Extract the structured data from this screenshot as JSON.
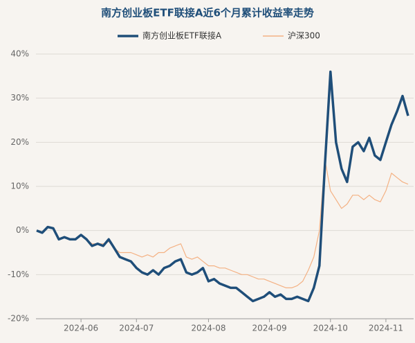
{
  "chart_data": {
    "type": "line",
    "title": "南方创业板ETF联接A近6个月累计收益率走势",
    "categories": [
      null,
      null,
      null,
      null,
      null,
      null,
      null,
      null,
      "2024-06",
      null,
      null,
      null,
      null,
      null,
      null,
      null,
      null,
      null,
      "2024-07",
      null,
      null,
      null,
      null,
      null,
      null,
      null,
      null,
      null,
      null,
      null,
      null,
      "2024-08",
      null,
      null,
      null,
      null,
      null,
      null,
      null,
      null,
      null,
      null,
      "2024-09",
      null,
      null,
      null,
      null,
      null,
      null,
      null,
      null,
      null,
      null,
      "2024-10",
      null,
      null,
      null,
      null,
      null,
      null,
      null,
      null,
      null,
      "2024-11",
      null,
      null,
      null,
      null
    ],
    "series": [
      {
        "name": "南方创业板ETF联接A",
        "color": "#1f4e79",
        "values": [
          0,
          -0.5,
          0.8,
          0.5,
          -2,
          -1.5,
          -2,
          -2,
          -1,
          -2,
          -3.5,
          -3,
          -3.5,
          -2,
          -4,
          -6,
          -6.5,
          -7,
          -8.5,
          -9.5,
          -10,
          -9,
          -10,
          -8.5,
          -8,
          -7,
          -6.5,
          -9.5,
          -10,
          -9.5,
          -8.5,
          -11.5,
          -11,
          -12,
          -12.5,
          -13,
          -13,
          -14,
          -15,
          -16,
          -15.5,
          -15,
          -14,
          -15,
          -14.5,
          -15.5,
          -15.5,
          -15,
          -15.5,
          -16,
          -13,
          -8,
          15,
          36,
          20,
          14,
          11,
          19,
          20,
          18,
          21,
          17,
          16,
          20,
          24,
          27,
          30.5,
          26
        ]
      },
      {
        "name": "沪深300",
        "color": "#f4b183",
        "values": [
          0,
          -0.5,
          0.8,
          0.5,
          -2,
          -1.5,
          -2,
          -2,
          -1,
          -2,
          -3,
          -3,
          -3,
          -2.5,
          -4,
          -5,
          -5,
          -5,
          -5.5,
          -6,
          -5.5,
          -6,
          -5,
          -5,
          -4,
          -3.5,
          -3,
          -6,
          -6.5,
          -6,
          -7,
          -8,
          -8,
          -8.5,
          -8.5,
          -9,
          -9.5,
          -10,
          -10,
          -10.5,
          -11,
          -11,
          -11.5,
          -12,
          -12.5,
          -13,
          -13,
          -12.5,
          -11.5,
          -9,
          -6,
          0,
          16,
          9,
          7,
          5,
          6,
          8,
          8,
          7,
          8,
          7,
          6.5,
          9,
          13,
          12,
          11,
          10.5
        ]
      }
    ],
    "ylim": [
      -20,
      40
    ],
    "yticks": [
      {
        "value": -20,
        "label": "-20%"
      },
      {
        "value": -10,
        "label": "-10%"
      },
      {
        "value": 0,
        "label": "0%"
      },
      {
        "value": 10,
        "label": "10%"
      },
      {
        "value": 20,
        "label": "20%"
      },
      {
        "value": 30,
        "label": "30%"
      },
      {
        "value": 40,
        "label": "40%"
      }
    ],
    "grid": true
  }
}
